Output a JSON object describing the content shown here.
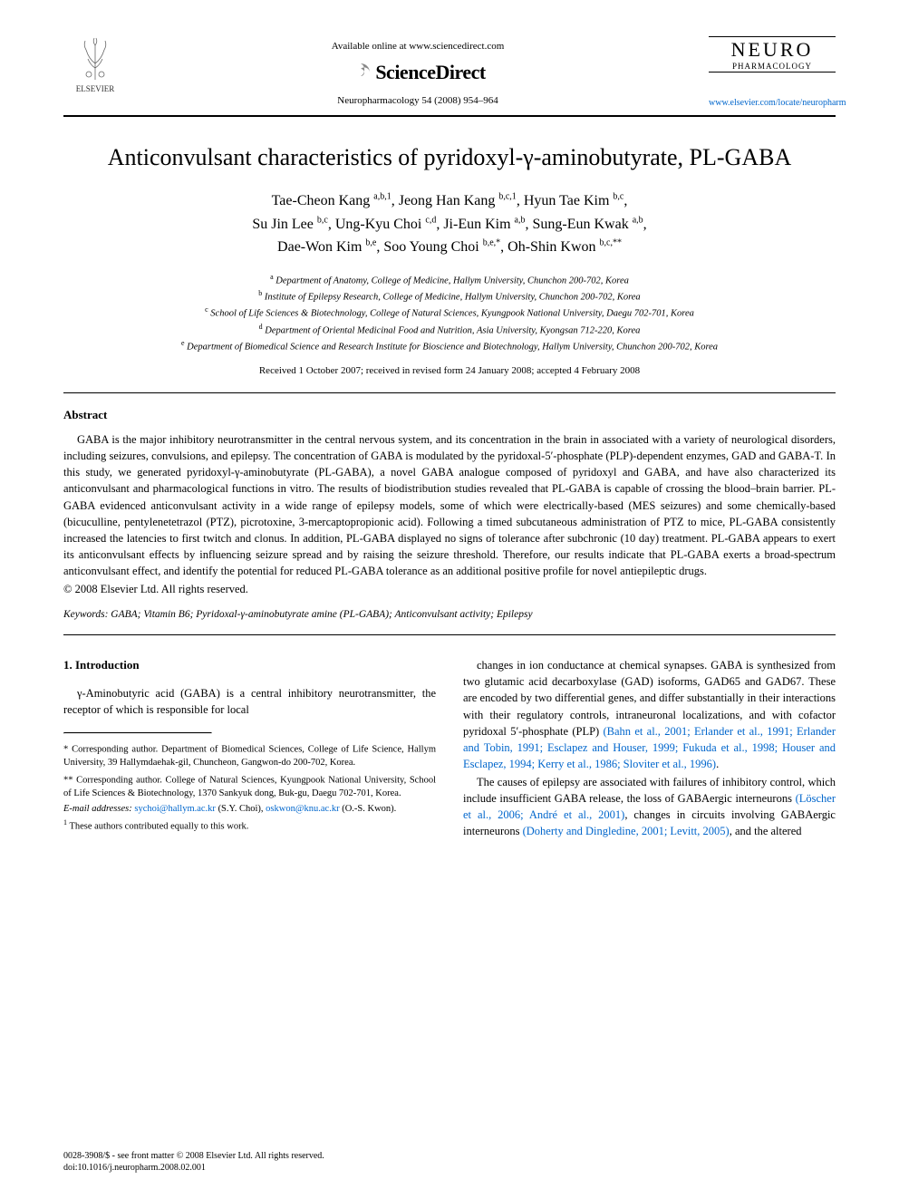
{
  "header": {
    "available_online": "Available online at www.sciencedirect.com",
    "sciencedirect": "ScienceDirect",
    "journal_ref": "Neuropharmacology 54 (2008) 954–964",
    "elsevier_label": "ELSEVIER",
    "neuro_title": "NEURO",
    "neuro_sub": "PHARMACOLOGY",
    "journal_link": "www.elsevier.com/locate/neuropharm"
  },
  "title": "Anticonvulsant characteristics of pyridoxyl-γ-aminobutyrate, PL-GABA",
  "authors_html": "Tae-Cheon Kang <sup>a,b,1</sup>, Jeong Han Kang <sup>b,c,1</sup>, Hyun Tae Kim <sup>b,c</sup>,<br>Su Jin Lee <sup>b,c</sup>, Ung-Kyu Choi <sup>c,d</sup>, Ji-Eun Kim <sup>a,b</sup>, Sung-Eun Kwak <sup>a,b</sup>,<br>Dae-Won Kim <sup>b,e</sup>, Soo Young Choi <sup>b,e,*</sup>, Oh-Shin Kwon <sup>b,c,**</sup>",
  "affiliations": [
    "<sup>a</sup> Department of Anatomy, College of Medicine, Hallym University, Chunchon 200-702, Korea",
    "<sup>b</sup> Institute of Epilepsy Research, College of Medicine, Hallym University, Chunchon 200-702, Korea",
    "<sup>c</sup> School of Life Sciences & Biotechnology, College of Natural Sciences, Kyungpook National University, Daegu 702-701, Korea",
    "<sup>d</sup> Department of Oriental Medicinal Food and Nutrition, Asia University, Kyongsan 712-220, Korea",
    "<sup>e</sup> Department of Biomedical Science and Research Institute for Bioscience and Biotechnology, Hallym University, Chunchon 200-702, Korea"
  ],
  "received": "Received 1 October 2007; received in revised form 24 January 2008; accepted 4 February 2008",
  "abstract": {
    "heading": "Abstract",
    "body": "GABA is the major inhibitory neurotransmitter in the central nervous system, and its concentration in the brain in associated with a variety of neurological disorders, including seizures, convulsions, and epilepsy. The concentration of GABA is modulated by the pyridoxal-5′-phosphate (PLP)-dependent enzymes, GAD and GABA-T. In this study, we generated pyridoxyl-γ-aminobutyrate (PL-GABA), a novel GABA analogue composed of pyridoxyl and GABA, and have also characterized its anticonvulsant and pharmacological functions in vitro. The results of biodistribution studies revealed that PL-GABA is capable of crossing the blood–brain barrier. PL-GABA evidenced anticonvulsant activity in a wide range of epilepsy models, some of which were electrically-based (MES seizures) and some chemically-based (bicuculline, pentylenetetrazol (PTZ), picrotoxine, 3-mercaptopropionic acid). Following a timed subcutaneous administration of PTZ to mice, PL-GABA consistently increased the latencies to first twitch and clonus. In addition, PL-GABA displayed no signs of tolerance after subchronic (10 day) treatment. PL-GABA appears to exert its anticonvulsant effects by influencing seizure spread and by raising the seizure threshold. Therefore, our results indicate that PL-GABA exerts a broad-spectrum anticonvulsant effect, and identify the potential for reduced PL-GABA tolerance as an additional positive profile for novel antiepileptic drugs.",
    "copyright": "© 2008 Elsevier Ltd. All rights reserved."
  },
  "keywords": {
    "label": "Keywords:",
    "text": "GABA; Vitamin B6; Pyridoxal-γ-aminobutyrate amine (PL-GABA); Anticonvulsant activity; Epilepsy"
  },
  "intro": {
    "heading": "1. Introduction",
    "p1": "γ-Aminobutyric acid (GABA) is a central inhibitory neurotransmitter, the receptor of which is responsible for local",
    "p2_part1": "changes in ion conductance at chemical synapses. GABA is synthesized from two glutamic acid decarboxylase (GAD) isoforms, GAD65 and GAD67. These are encoded by two differential genes, and differ substantially in their interactions with their regulatory controls, intraneuronal localizations, and with cofactor pyridoxal 5′-phosphate (PLP) ",
    "p2_cite": "(Bahn et al., 2001; Erlander et al., 1991; Erlander and Tobin, 1991; Esclapez and Houser, 1999; Fukuda et al., 1998; Houser and Esclapez, 1994; Kerry et al., 1986; Sloviter et al., 1996)",
    "p3_part1": "The causes of epilepsy are associated with failures of inhibitory control, which include insufficient GABA release, the loss of GABAergic interneurons ",
    "p3_cite1": "(Löscher et al., 2006; André et al., 2001)",
    "p3_part2": ", changes in circuits involving GABAergic interneurons ",
    "p3_cite2": "(Doherty and Dingledine, 2001; Levitt, 2005)",
    "p3_part3": ", and the altered"
  },
  "footnotes": {
    "corr1": "* Corresponding author. Department of Biomedical Sciences, College of Life Science, Hallym University, 39 Hallymdaehak-gil, Chuncheon, Gangwon-do 200-702, Korea.",
    "corr2": "** Corresponding author. College of Natural Sciences, Kyungpook National University, School of Life Sciences & Biotechnology, 1370 Sankyuk dong, Buk-gu, Daegu 702-701, Korea.",
    "email_label": "E-mail addresses:",
    "email1": "sychoi@hallym.ac.kr",
    "email1_name": "(S.Y. Choi),",
    "email2": "oskwon@knu.ac.kr",
    "email2_name": "(O.-S. Kwon).",
    "equal": "These authors contributed equally to this work."
  },
  "footer": {
    "line1": "0028-3908/$ - see front matter © 2008 Elsevier Ltd. All rights reserved.",
    "line2": "doi:10.1016/j.neuropharm.2008.02.001"
  },
  "colors": {
    "link": "#0066cc",
    "text": "#000000",
    "bg": "#ffffff"
  }
}
